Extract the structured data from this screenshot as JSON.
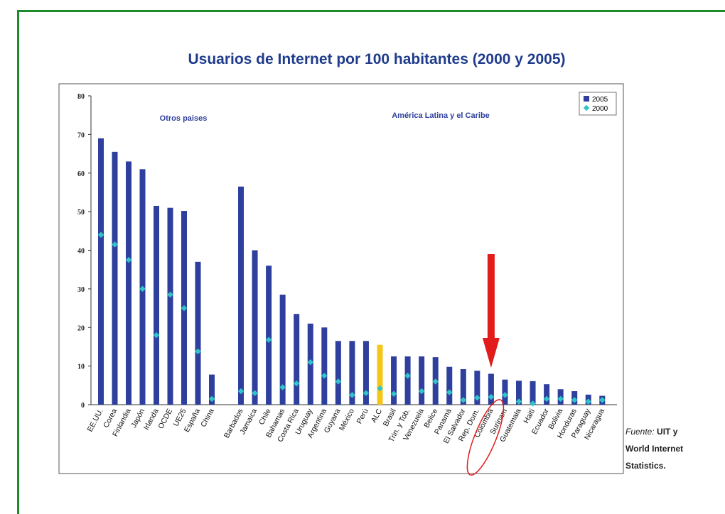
{
  "chart_data": {
    "type": "bar",
    "title": "Usuarios de Internet por 100 habitantes (2000 y 2005)",
    "ylim": [
      0,
      80
    ],
    "yticks": [
      0,
      10,
      20,
      30,
      40,
      50,
      60,
      70,
      80
    ],
    "group_labels": [
      "Otros paises",
      "América Latina y el Caribe"
    ],
    "legend": {
      "position": "top-right",
      "entries": [
        "2005",
        "2000"
      ]
    },
    "categories": [
      "EE.UU.",
      "Corea",
      "Finlandia",
      "Japón",
      "Irlanda",
      "OCDE",
      "UE25",
      "España",
      "China",
      "Barbados",
      "Jamaica",
      "Chile",
      "Bahamas",
      "Costa Rica",
      "Uruguay",
      "Argentina",
      "Guyana",
      "México",
      "Perú",
      "ALC",
      "Brasil",
      "Trin. y Tob.",
      "Venezuela",
      "Belice",
      "Panamá",
      "El Salvador",
      "Rep. Dom.",
      "Colombia",
      "Surinam",
      "Guatemala",
      "Haití",
      "Ecuador",
      "Bolivia",
      "Honduras",
      "Paraguay",
      "Nicaragua"
    ],
    "series": [
      {
        "name": "2005",
        "values": [
          69,
          65.5,
          63,
          61,
          51.5,
          51,
          50.2,
          37,
          7.8,
          56.5,
          40,
          36,
          28.5,
          23.5,
          21,
          20,
          16.5,
          16.5,
          16.5,
          15.5,
          12.5,
          12.5,
          12.5,
          12.3,
          9.8,
          9.2,
          8.8,
          8,
          6.5,
          6.2,
          6.1,
          5.3,
          4,
          3.5,
          2.6,
          2.3
        ]
      },
      {
        "name": "2000",
        "values": [
          44,
          41.5,
          37.5,
          30,
          18,
          28.5,
          25,
          13.8,
          1.5,
          3.5,
          3,
          16.8,
          4.5,
          5.5,
          11,
          7.5,
          6,
          2.5,
          3,
          4.2,
          2.8,
          7.5,
          3.5,
          6,
          3.2,
          1.2,
          1.8,
          2,
          2.5,
          0.8,
          0.3,
          1.5,
          1.5,
          1.2,
          0.8,
          1.2
        ]
      }
    ],
    "colors": {
      "bar": "#2e3f9e",
      "highlight": "#f5c518",
      "marker": "#2fc5c8",
      "arrow": "#e21b1b",
      "ellipse": "#e21b1b"
    },
    "highlight_category": "ALC",
    "annotation": {
      "type": "arrow-and-ellipse",
      "target": "Colombia"
    }
  },
  "source": {
    "label": "Fuente:",
    "text_1": "UIT y",
    "text_2": "World Internet",
    "text_3": "Statistics."
  }
}
